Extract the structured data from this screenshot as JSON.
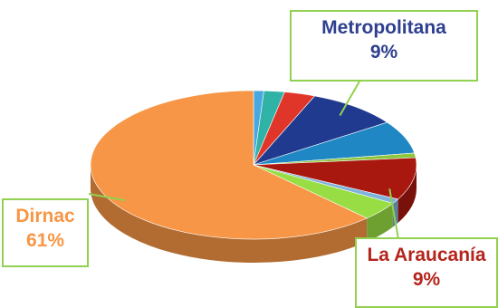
{
  "chart_data": {
    "type": "pie",
    "style": "3d-perspective",
    "start_angle_deg": -90,
    "slices": [
      {
        "label": "",
        "value": 1,
        "color": "#4aa8e0"
      },
      {
        "label": "",
        "value": 2,
        "color": "#2fb3a6"
      },
      {
        "label": "",
        "value": 3,
        "color": "#e0362a"
      },
      {
        "label": "Metropolitana",
        "value": 9,
        "display_value": "9%",
        "color": "#203a8f",
        "label_color": "#2e3f8f"
      },
      {
        "label": "",
        "value": 7,
        "color": "#1f88c4"
      },
      {
        "label": "",
        "value": 1,
        "color": "#8ec63f"
      },
      {
        "label": "La Araucanía",
        "value": 9,
        "display_value": "9%",
        "color": "#a8180f",
        "label_color": "#b5241c"
      },
      {
        "label": "",
        "value": 1,
        "color": "#7fb2dd"
      },
      {
        "label": "",
        "value": 4,
        "color": "#99dd44"
      },
      {
        "label": "Dirnac",
        "value": 61,
        "display_value": "61%",
        "color": "#f79646",
        "label_color": "#f79646"
      }
    ],
    "callout_border_color": "#92d050",
    "legend": "none"
  }
}
